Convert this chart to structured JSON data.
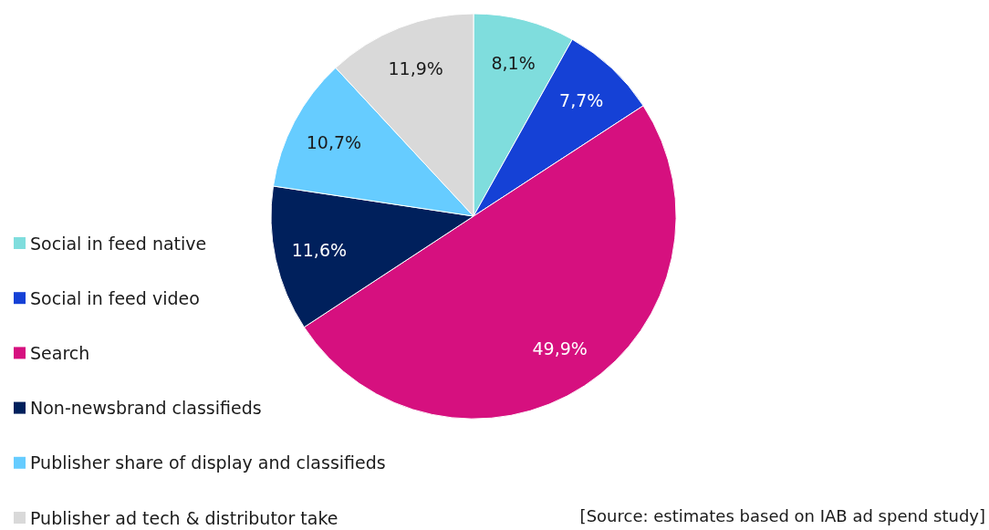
{
  "chart_data": {
    "type": "pie",
    "categories": [
      "Social in feed native",
      "Social in feed video",
      "Search",
      "Non-newsbrand classifieds",
      "Publisher share of display and classifieds",
      "Publisher ad tech & distributor take"
    ],
    "values": [
      8.1,
      7.7,
      49.9,
      11.6,
      10.7,
      11.9
    ],
    "value_labels": [
      "8,1%",
      "7,7%",
      "49,9%",
      "11,6%",
      "10,7%",
      "11,9%"
    ],
    "colors": [
      "#7fdddd",
      "#1541d6",
      "#d6107f",
      "#00205c",
      "#66ccff",
      "#d9d9d9"
    ],
    "legend": "left",
    "annotations": [
      "[Source: estimates based on IAB ad spend study]"
    ]
  }
}
